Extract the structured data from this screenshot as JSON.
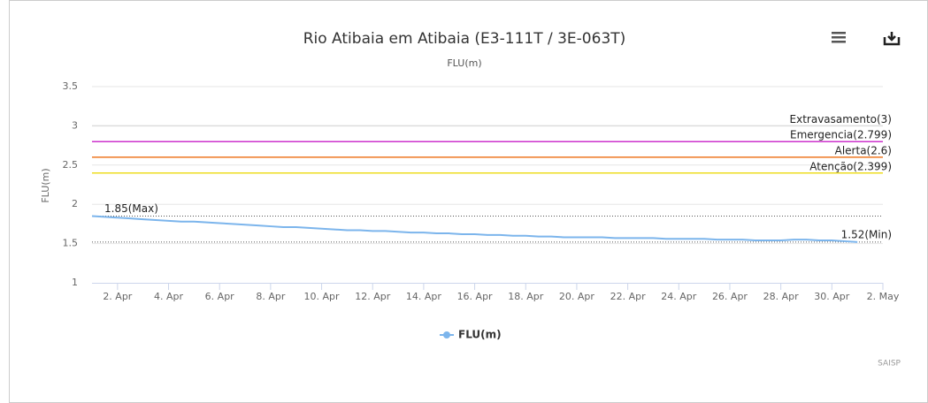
{
  "chart_data": {
    "type": "line",
    "title": "Rio Atibaia em Atibaia (E3-111T / 3E-063T)",
    "subtitle": "FLU(m)",
    "y_label": "FLU(m)",
    "credits": "SAISP",
    "xlim": [
      1,
      32
    ],
    "xticks": [
      {
        "value": 2,
        "label": "2. Apr"
      },
      {
        "value": 4,
        "label": "4. Apr"
      },
      {
        "value": 6,
        "label": "6. Apr"
      },
      {
        "value": 8,
        "label": "8. Apr"
      },
      {
        "value": 10,
        "label": "10. Apr"
      },
      {
        "value": 12,
        "label": "12. Apr"
      },
      {
        "value": 14,
        "label": "14. Apr"
      },
      {
        "value": 16,
        "label": "16. Apr"
      },
      {
        "value": 18,
        "label": "18. Apr"
      },
      {
        "value": 20,
        "label": "20. Apr"
      },
      {
        "value": 22,
        "label": "22. Apr"
      },
      {
        "value": 24,
        "label": "24. Apr"
      },
      {
        "value": 26,
        "label": "26. Apr"
      },
      {
        "value": 28,
        "label": "28. Apr"
      },
      {
        "value": 30,
        "label": "30. Apr"
      },
      {
        "value": 32,
        "label": "2. May"
      }
    ],
    "ylim": [
      1,
      3.5
    ],
    "yticks": [
      1,
      1.5,
      2,
      2.5,
      3,
      3.5
    ],
    "grid": true,
    "x": [
      1,
      1.5,
      2,
      2.5,
      3,
      3.5,
      4,
      4.5,
      5,
      5.5,
      6,
      6.5,
      7,
      7.5,
      8,
      8.5,
      9,
      9.5,
      10,
      10.5,
      11,
      11.5,
      12,
      12.5,
      13,
      13.5,
      14,
      14.5,
      15,
      15.5,
      16,
      16.5,
      17,
      17.5,
      18,
      18.5,
      19,
      19.5,
      20,
      20.5,
      21,
      21.5,
      22,
      22.5,
      23,
      23.5,
      24,
      24.5,
      25,
      25.5,
      26,
      26.5,
      27,
      27.5,
      28,
      28.5,
      29,
      29.5,
      30,
      30.5,
      31
    ],
    "series": [
      {
        "name": "FLU(m)",
        "color": "#7cb5ec",
        "values": [
          1.85,
          1.84,
          1.83,
          1.82,
          1.81,
          1.8,
          1.79,
          1.78,
          1.78,
          1.77,
          1.76,
          1.75,
          1.74,
          1.73,
          1.72,
          1.71,
          1.71,
          1.7,
          1.69,
          1.68,
          1.67,
          1.67,
          1.66,
          1.66,
          1.65,
          1.64,
          1.64,
          1.63,
          1.63,
          1.62,
          1.62,
          1.61,
          1.61,
          1.6,
          1.6,
          1.59,
          1.59,
          1.58,
          1.58,
          1.58,
          1.58,
          1.57,
          1.57,
          1.57,
          1.57,
          1.56,
          1.56,
          1.56,
          1.56,
          1.55,
          1.55,
          1.55,
          1.54,
          1.54,
          1.54,
          1.55,
          1.55,
          1.54,
          1.54,
          1.53,
          1.52
        ]
      }
    ],
    "plot_lines": [
      {
        "label": "Extravasamento(3)",
        "value": 3,
        "color": "#dddddd"
      },
      {
        "label": "Emergencia(2.799)",
        "value": 2.799,
        "color": "#cc33cc"
      },
      {
        "label": "Alerta(2.6)",
        "value": 2.6,
        "color": "#ee7722"
      },
      {
        "label": "Atenção(2.399)",
        "value": 2.399,
        "color": "#eedd22"
      }
    ],
    "annotations": [
      {
        "label": "1.85(Max)",
        "value": 1.85
      },
      {
        "label": "1.52(Min)",
        "value": 1.52
      }
    ]
  }
}
